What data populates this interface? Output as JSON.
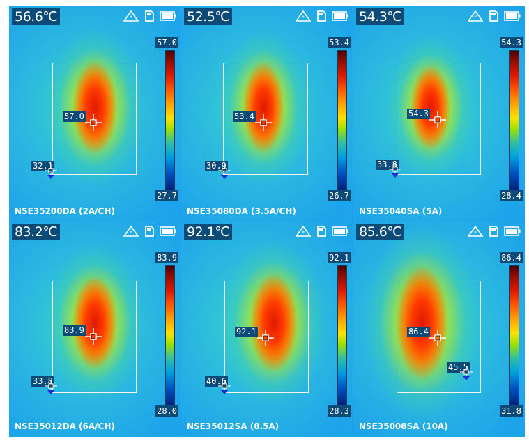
{
  "panels": [
    {
      "temp": "56.6℃",
      "max": "57.0",
      "min": "27.7",
      "hot": "57.0",
      "cold": "32.1",
      "caption": "NSE35200DA (2A/CH)"
    },
    {
      "temp": "52.5℃",
      "max": "53.4",
      "min": "26.7",
      "hot": "53.4",
      "cold": "30.9",
      "caption": "NSE35080DA (3.5A/CH)"
    },
    {
      "temp": "54.3℃",
      "max": "54.3",
      "min": "28.4",
      "hot": "54.3",
      "cold": "33.8",
      "caption": "NSE35040SA (5A)"
    },
    {
      "temp": "83.2℃",
      "max": "83.9",
      "min": "28.0",
      "hot": "83.9",
      "cold": "33.8",
      "caption": "NSE35012DA (6A/CH)"
    },
    {
      "temp": "92.1℃",
      "max": "92.1",
      "min": "28.3",
      "hot": "92.1",
      "cold": "40.6",
      "caption": "NSE35012SA (8.5A)"
    },
    {
      "temp": "85.6℃",
      "max": "86.4",
      "min": "31.8",
      "hot": "86.4",
      "cold": "45.5",
      "caption": "NSE35008SA (10A)"
    }
  ],
  "icons": [
    "brightness-icon",
    "sd-card-icon",
    "battery-icon"
  ]
}
